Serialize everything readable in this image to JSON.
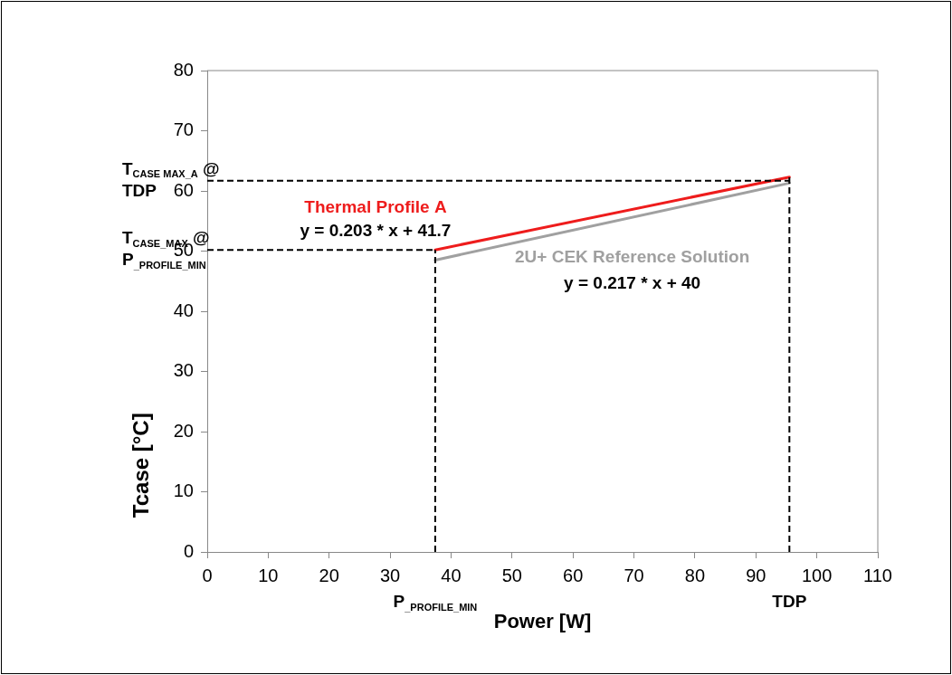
{
  "chart_data": {
    "type": "line",
    "xlabel": "Power [W]",
    "ylabel": "Tcase [°C]",
    "xlim": [
      0,
      110
    ],
    "xticks": [
      0,
      10,
      20,
      30,
      40,
      50,
      60,
      70,
      80,
      90,
      100,
      110
    ],
    "ylim": [
      0,
      80
    ],
    "yticks": [
      0,
      10,
      20,
      30,
      40,
      50,
      60,
      70,
      80
    ],
    "grid": false,
    "legend": false,
    "marker": "none",
    "line_style": "solid",
    "x": [
      37.4,
      95.5
    ],
    "series": [
      {
        "name": "Thermal Profile A",
        "color": "#ee1c1c",
        "values": [
          50.2,
          62.3
        ]
      },
      {
        "name": "2U+ CEK Reference Solution",
        "color": "#a0a0a0",
        "values": [
          48.5,
          61.3
        ]
      }
    ],
    "ref_lines": [
      {
        "axis": "y",
        "value": 61.7,
        "label": "T$_{CASE MAX_A}$ @ TDP",
        "color": "#000000",
        "line_style": "dashed"
      },
      {
        "axis": "y",
        "value": 50.2,
        "label": "T$_{CASE_MAX}$ @ P$_{_PROFILE_MIN}$",
        "color": "#000000",
        "line_style": "dashed"
      },
      {
        "axis": "x",
        "value": 37.4,
        "label": "P$_{_PROFILE_MIN}$",
        "color": "#000000",
        "line_style": "dashed"
      },
      {
        "axis": "x",
        "value": 95.5,
        "label": "TDP",
        "color": "#000000",
        "line_style": "dashed"
      }
    ],
    "annotations": [
      "y = 0.203 * x + 41.7",
      "y = 0.217 * x + 40"
    ]
  }
}
